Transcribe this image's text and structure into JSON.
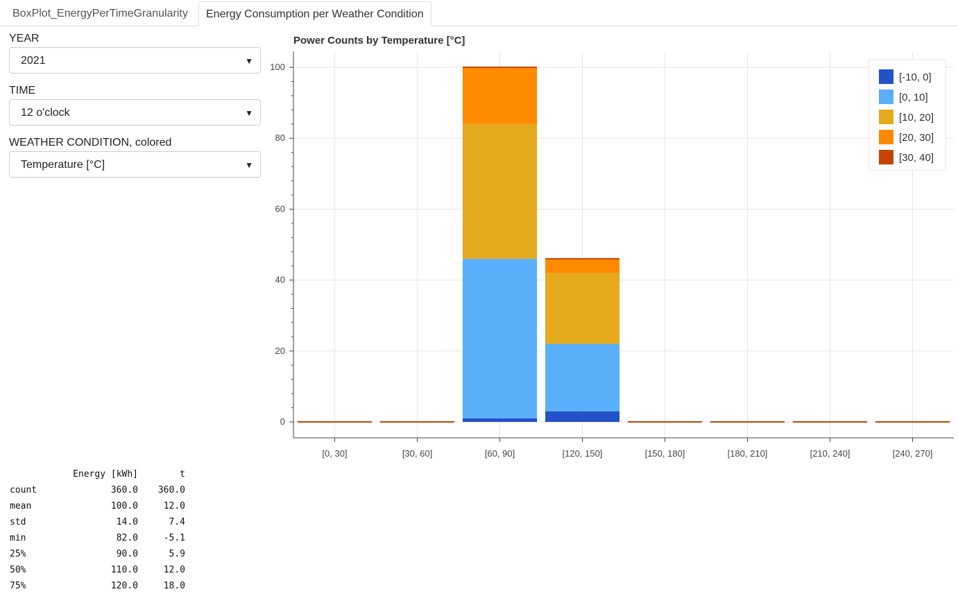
{
  "tabs": [
    {
      "label": "BoxPlot_EnergyPerTimeGranularity",
      "active": false
    },
    {
      "label": "Energy Consumption per Weather Condition",
      "active": true
    }
  ],
  "widgets": {
    "year": {
      "label": "YEAR",
      "value": "2021"
    },
    "time": {
      "label": "TIME",
      "value": "12 o'clock"
    },
    "weather": {
      "label": "WEATHER CONDITION, colored",
      "value": "Temperature [°C]"
    }
  },
  "chart_data": {
    "type": "bar",
    "stacked": true,
    "title": "Power Counts by Temperature [°C]",
    "xlabel": "",
    "ylabel": "",
    "categories": [
      "[0, 30]",
      "[30, 60]",
      "[60, 90]",
      "[120, 150]",
      "[150, 180]",
      "[180, 210]",
      "[210, 240]",
      "[240, 270]"
    ],
    "ylim": [
      -4.5,
      104.5
    ],
    "yticks": [
      0,
      20,
      40,
      60,
      80,
      100
    ],
    "grid": true,
    "legend_position": "top-right",
    "series": [
      {
        "name": "[-10, 0]",
        "color": "#2251c8",
        "values": [
          0,
          0,
          1,
          3,
          0,
          0,
          0,
          0
        ]
      },
      {
        "name": "[0, 10]",
        "color": "#5aaffa",
        "values": [
          0,
          0,
          45,
          19,
          0,
          0,
          0,
          0
        ]
      },
      {
        "name": "[10, 20]",
        "color": "#e6aa1e",
        "values": [
          0,
          0,
          38,
          20,
          0,
          0,
          0,
          0
        ]
      },
      {
        "name": "[20, 30]",
        "color": "#ff8a00",
        "values": [
          0,
          0,
          16,
          4,
          0,
          0,
          0,
          0
        ]
      },
      {
        "name": "[30, 40]",
        "color": "#c74400",
        "values": [
          0,
          0,
          0,
          0,
          0,
          0,
          0,
          0
        ]
      }
    ]
  },
  "stats_table": {
    "columns": [
      "Energy [kWh]",
      "t"
    ],
    "rows": [
      {
        "label": "count",
        "energy": "360.0",
        "t": "360.0"
      },
      {
        "label": "mean",
        "energy": "100.0",
        "t": "12.0"
      },
      {
        "label": "std",
        "energy": "14.0",
        "t": "7.4"
      },
      {
        "label": "min",
        "energy": "82.0",
        "t": "-5.1"
      },
      {
        "label": "25%",
        "energy": "90.0",
        "t": "5.9"
      },
      {
        "label": "50%",
        "energy": "110.0",
        "t": "12.0"
      },
      {
        "label": "75%",
        "energy": "120.0",
        "t": "18.0"
      }
    ]
  }
}
